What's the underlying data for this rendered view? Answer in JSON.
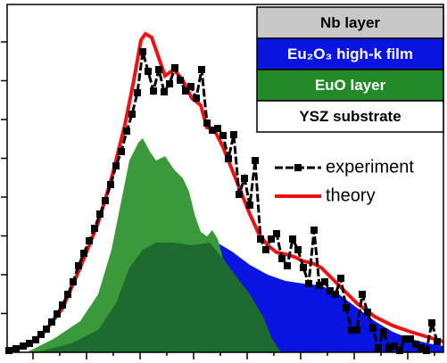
{
  "chart_data": {
    "type": "line",
    "xlim": [
      -29,
      460
    ],
    "xticks": [
      0,
      30,
      60,
      90,
      120,
      150,
      180,
      210,
      240,
      270,
      300,
      330,
      360,
      390,
      420,
      450
    ],
    "ylim": [
      0,
      390
    ],
    "yticks": [
      43.5,
      87,
      130.5,
      174,
      217.5,
      261,
      304.5,
      348
    ],
    "series": [
      {
        "fill": true,
        "color": "#0a14e0",
        "x": [
          163,
          203,
          223,
          243,
          263,
          283,
          303,
          323,
          343,
          363,
          383,
          403,
          423,
          443,
          460
        ],
        "values": [
          0,
          125,
          113,
          98,
          87,
          80,
          77,
          75,
          65,
          50,
          35,
          23,
          15,
          10,
          7
        ]
      },
      {
        "fill": true,
        "color": "#3a9a3a",
        "x": [
          -7,
          23,
          53,
          73,
          88,
          98,
          108,
          118,
          123,
          131,
          138,
          148,
          158,
          168,
          175,
          181,
          188,
          195,
          201,
          207,
          213,
          223,
          233,
          243,
          253,
          263,
          273
        ],
        "values": [
          0,
          15,
          35,
          65,
          115,
          165,
          215,
          235,
          240,
          225,
          215,
          220,
          205,
          195,
          180,
          155,
          135,
          130,
          137,
          127,
          105,
          85,
          55,
          35,
          15,
          3,
          0
        ]
      },
      {
        "fill": true,
        "color": "#1d6b2e",
        "x": [
          3,
          43,
          73,
          93,
          108,
          123,
          138,
          158,
          178,
          198,
          213,
          228,
          243,
          258,
          268,
          278
        ],
        "values": [
          0,
          10,
          25,
          55,
          95,
          115,
          123,
          123,
          120,
          123,
          105,
          85,
          65,
          40,
          15,
          0
        ]
      },
      {
        "name": "theory",
        "color": "#ee1111",
        "x": [
          -29,
          -7,
          13,
          33,
          53,
          73,
          88,
          103,
          113,
          121,
          126,
          133,
          141,
          148,
          158,
          168,
          178,
          188,
          195,
          203,
          213,
          223,
          233,
          243,
          253,
          263,
          273,
          283,
          293,
          303,
          313,
          323,
          333,
          343,
          363,
          383,
          403,
          423,
          443,
          460
        ],
        "values": [
          0,
          7,
          23,
          49,
          95,
          145,
          195,
          255,
          305,
          350,
          357,
          353,
          330,
          310,
          317,
          305,
          285,
          277,
          252,
          250,
          230,
          205,
          180,
          155,
          133,
          120,
          112,
          110,
          107,
          102,
          100,
          95,
          85,
          75,
          55,
          40,
          30,
          23,
          17,
          12
        ]
      },
      {
        "name": "experiment",
        "color": "#000000",
        "marker": "square",
        "x": [
          -27,
          -19,
          -11,
          -4,
          3,
          9,
          15,
          21,
          27,
          33,
          39,
          45,
          51,
          57,
          63,
          69,
          75,
          81,
          87,
          93,
          99,
          105,
          111,
          117,
          123,
          129,
          135,
          141,
          147,
          153,
          159,
          165,
          171,
          177,
          183,
          189,
          195,
          201,
          207,
          213,
          219,
          225,
          231,
          237,
          243,
          249,
          255,
          261,
          267,
          273,
          279,
          285,
          291,
          297,
          303,
          309,
          315,
          321,
          327,
          333,
          339,
          345,
          351,
          357,
          363,
          369,
          375,
          381,
          387,
          393,
          399,
          405,
          411,
          417,
          423,
          429,
          435,
          441,
          447,
          453
        ],
        "values": [
          2,
          4,
          7,
          10,
          14,
          20,
          26,
          34,
          43,
          53,
          65,
          79,
          97,
          111,
          125,
          139,
          155,
          170,
          188,
          209,
          225,
          248,
          267,
          291,
          337,
          315,
          293,
          317,
          292,
          301,
          319,
          305,
          293,
          298,
          285,
          317,
          257,
          249,
          251,
          243,
          217,
          244,
          177,
          195,
          165,
          215,
          127,
          115,
          127,
          133,
          105,
          97,
          127,
          115,
          95,
          77,
          137,
          75,
          79,
          69,
          65,
          83,
          50,
          25,
          25,
          65,
          45,
          27,
          5,
          23,
          5,
          7,
          2,
          15,
          15,
          9,
          5,
          2,
          33,
          12
        ]
      }
    ],
    "layers": [
      {
        "name": "Nb layer",
        "color": "#c8c8c8",
        "text_color": "#000000"
      },
      {
        "name": "Eu₂O₃ high-k film",
        "color": "#0a14e0",
        "text_color": "#ffffff"
      },
      {
        "name": "EuO layer",
        "color": "#238a2a",
        "text_color": "#ffffff"
      },
      {
        "name": "YSZ substrate",
        "color": "#ffffff",
        "text_color": "#000000"
      }
    ]
  }
}
